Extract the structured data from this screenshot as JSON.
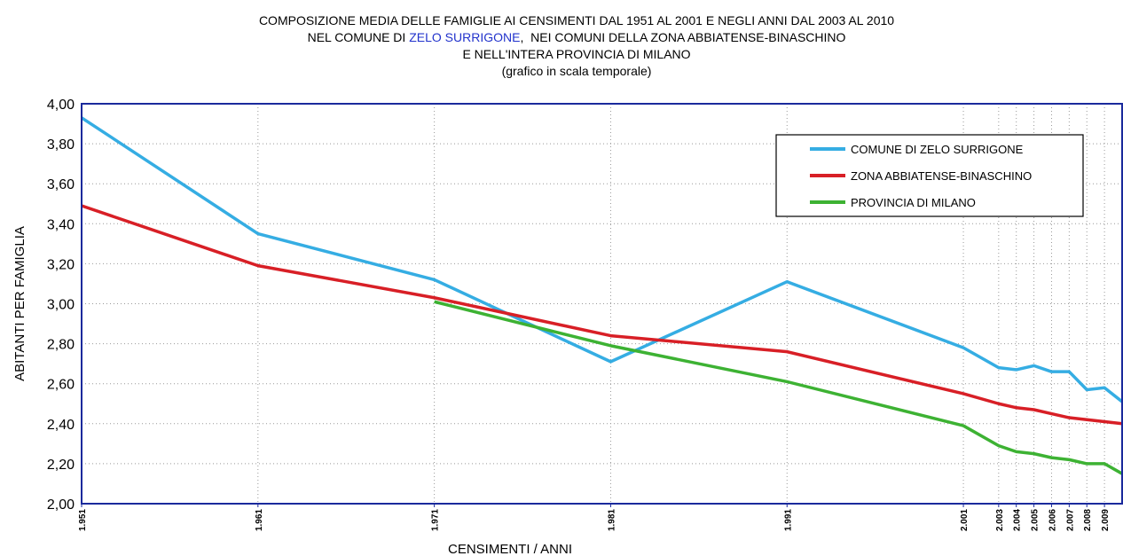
{
  "chart_data": {
    "type": "line",
    "title_lines": [
      [
        "COMPOSIZIONE MEDIA DELLE FAMIGLIE AI CENSIMENTI DAL 1951 AL 2001 E NEGLI ANNI DAL 2003 AL 2010"
      ],
      [
        "NEL COMUNE DI ",
        "ZELO SURRIGONE",
        ",  NEI COMUNI DELLA ZONA ABBIATENSE-BINASCHINO"
      ],
      [
        "E NELL'INTERA PROVINCIA DI MILANO"
      ],
      [
        "(grafico in scala temporale)"
      ]
    ],
    "title_highlight_color": "#2233cc",
    "x_label": "CENSIMENTI / ANNI",
    "y_label": "ABITANTI PER FAMIGLIA",
    "x": [
      1951,
      1961,
      1971,
      1981,
      1991,
      2001,
      2003,
      2004,
      2005,
      2006,
      2007,
      2008,
      2009,
      2010
    ],
    "series": [
      {
        "name": "COMUNE DI ZELO SURRIGONE",
        "color": "#35ade3",
        "values": [
          3.93,
          3.35,
          3.12,
          2.71,
          3.11,
          2.78,
          2.68,
          2.67,
          2.69,
          2.66,
          2.66,
          2.57,
          2.58,
          2.51
        ]
      },
      {
        "name": "ZONA ABBIATENSE-BINASCHINO",
        "color": "#d81f26",
        "values": [
          3.49,
          3.19,
          3.03,
          2.84,
          2.76,
          2.55,
          2.5,
          2.48,
          2.47,
          2.45,
          2.43,
          2.42,
          2.41,
          2.4
        ]
      },
      {
        "name": "PROVINCIA DI MILANO",
        "color": "#3db233",
        "values": [
          null,
          null,
          3.01,
          2.79,
          2.61,
          2.39,
          2.29,
          2.26,
          2.25,
          2.23,
          2.22,
          2.2,
          2.2,
          2.15
        ]
      }
    ],
    "xlim": [
      1951,
      2010
    ],
    "ylim": [
      2.0,
      4.0
    ],
    "xticks": [
      {
        "value": 1951,
        "label": "1.951"
      },
      {
        "value": 1961,
        "label": "1.961"
      },
      {
        "value": 1971,
        "label": "1.971"
      },
      {
        "value": 1981,
        "label": "1.981"
      },
      {
        "value": 1991,
        "label": "1.991"
      },
      {
        "value": 2001,
        "label": "2.001"
      },
      {
        "value": 2003,
        "label": "2.003"
      },
      {
        "value": 2004,
        "label": "2.004"
      },
      {
        "value": 2005,
        "label": "2.005"
      },
      {
        "value": 2006,
        "label": "2.006"
      },
      {
        "value": 2007,
        "label": "2.007"
      },
      {
        "value": 2008,
        "label": "2.008"
      },
      {
        "value": 2009,
        "label": "2.009"
      }
    ],
    "yticks": [
      {
        "value": 2.0,
        "label": "2,00"
      },
      {
        "value": 2.2,
        "label": "2,20"
      },
      {
        "value": 2.4,
        "label": "2,40"
      },
      {
        "value": 2.6,
        "label": "2,60"
      },
      {
        "value": 2.8,
        "label": "2,80"
      },
      {
        "value": 3.0,
        "label": "3,00"
      },
      {
        "value": 3.2,
        "label": "3,20"
      },
      {
        "value": 3.4,
        "label": "3,40"
      },
      {
        "value": 3.6,
        "label": "3,60"
      },
      {
        "value": 3.8,
        "label": "3,80"
      },
      {
        "value": 4.0,
        "label": "4,00"
      }
    ],
    "grid": true,
    "legend_position": "upper right",
    "axis_color": "#1a2a9c"
  }
}
